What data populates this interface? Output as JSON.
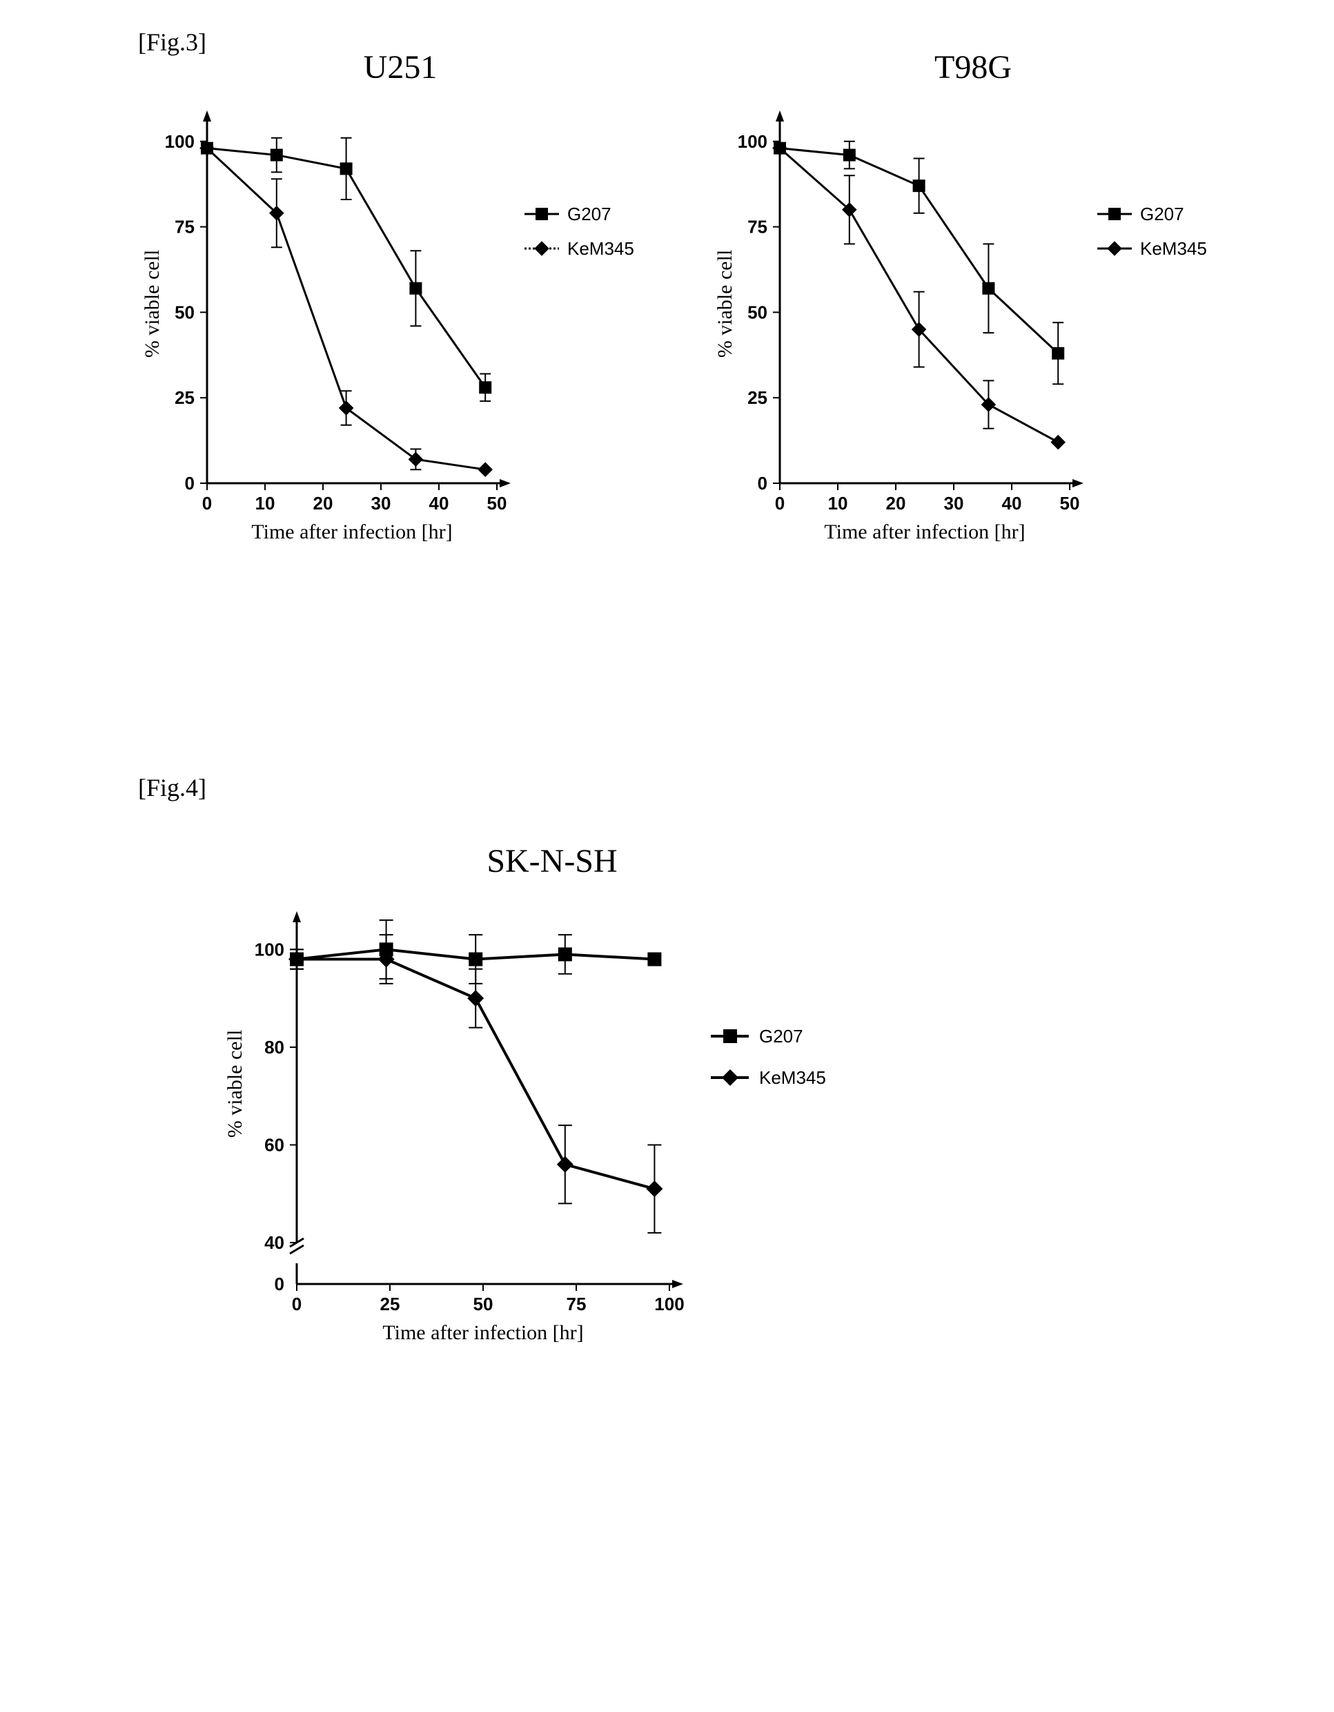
{
  "fig3_label": "[Fig.3]",
  "fig4_label": "[Fig.4]",
  "colors": {
    "stroke": "#000000",
    "background": "#ffffff"
  },
  "chart_U251": {
    "type": "line",
    "title": "U251",
    "xlabel": "Time after infection [hr]",
    "ylabel": "% viable cell",
    "xlim": [
      0,
      50
    ],
    "ylim": [
      0,
      105
    ],
    "xticks": [
      0,
      10,
      20,
      30,
      40,
      50
    ],
    "yticks": [
      0,
      25,
      50,
      75,
      100
    ],
    "line_width": 3,
    "axis_width": 3,
    "marker_size": 9,
    "error_cap": 8,
    "title_fontsize": 48,
    "label_fontsize": 30,
    "tick_fontsize": 26,
    "series": [
      {
        "name": "G207",
        "marker": "square",
        "color": "#000000",
        "dash": "none",
        "x": [
          0,
          12,
          24,
          36,
          48
        ],
        "y": [
          98,
          96,
          92,
          57,
          28
        ],
        "err": [
          0,
          5,
          9,
          11,
          4
        ]
      },
      {
        "name": "KeM345",
        "marker": "diamond",
        "color": "#000000",
        "dash": "none",
        "x": [
          0,
          12,
          24,
          36,
          48
        ],
        "y": [
          98,
          79,
          22,
          7,
          4
        ],
        "err": [
          0,
          10,
          5,
          3,
          0
        ]
      }
    ],
    "legend": {
      "items": [
        "G207",
        "KeM345"
      ],
      "markers": [
        "square",
        "diamond"
      ],
      "dashes": [
        "none",
        "3,3"
      ]
    }
  },
  "chart_T98G": {
    "type": "line",
    "title": "T98G",
    "xlabel": "Time after infection [hr]",
    "ylabel": "% viable cell",
    "xlim": [
      0,
      50
    ],
    "ylim": [
      0,
      105
    ],
    "xticks": [
      0,
      10,
      20,
      30,
      40,
      50
    ],
    "yticks": [
      0,
      25,
      50,
      75,
      100
    ],
    "line_width": 3,
    "axis_width": 3,
    "marker_size": 9,
    "error_cap": 8,
    "title_fontsize": 48,
    "label_fontsize": 30,
    "tick_fontsize": 26,
    "series": [
      {
        "name": "G207",
        "marker": "square",
        "color": "#000000",
        "dash": "none",
        "x": [
          0,
          12,
          24,
          36,
          48
        ],
        "y": [
          98,
          96,
          87,
          57,
          38
        ],
        "err": [
          0,
          4,
          8,
          13,
          9
        ]
      },
      {
        "name": "KeM345",
        "marker": "diamond",
        "color": "#000000",
        "dash": "none",
        "x": [
          0,
          12,
          24,
          36,
          48
        ],
        "y": [
          98,
          80,
          45,
          23,
          12
        ],
        "err": [
          0,
          10,
          11,
          7,
          0
        ]
      }
    ],
    "legend": {
      "items": [
        "G207",
        "KeM345"
      ],
      "markers": [
        "square",
        "diamond"
      ],
      "dashes": [
        "none",
        "none"
      ]
    }
  },
  "chart_SKNSH": {
    "type": "line",
    "title": "SK-N-SH",
    "xlabel": "Time after infection [hr]",
    "ylabel": "% viable cell",
    "xlim": [
      0,
      100
    ],
    "ylim_display": [
      40,
      105
    ],
    "ylim_break_low": 0,
    "xticks": [
      0,
      25,
      50,
      75,
      100
    ],
    "yticks_upper": [
      40,
      60,
      80,
      100
    ],
    "ytick_zero": 0,
    "line_width": 4,
    "axis_width": 3,
    "marker_size": 10,
    "error_cap": 10,
    "title_fontsize": 48,
    "label_fontsize": 30,
    "tick_fontsize": 26,
    "series": [
      {
        "name": "G207",
        "marker": "square",
        "color": "#000000",
        "x": [
          0,
          24,
          48,
          72,
          96
        ],
        "y": [
          98,
          100,
          98,
          99,
          98
        ],
        "err": [
          2,
          6,
          5,
          4,
          0
        ]
      },
      {
        "name": "KeM345",
        "marker": "diamond",
        "color": "#000000",
        "x": [
          0,
          24,
          48,
          72,
          96
        ],
        "y": [
          98,
          98,
          90,
          56,
          51
        ],
        "err": [
          2,
          5,
          6,
          8,
          9
        ]
      }
    ],
    "legend": {
      "items": [
        "G207",
        "KeM345"
      ],
      "markers": [
        "square",
        "diamond"
      ]
    }
  }
}
